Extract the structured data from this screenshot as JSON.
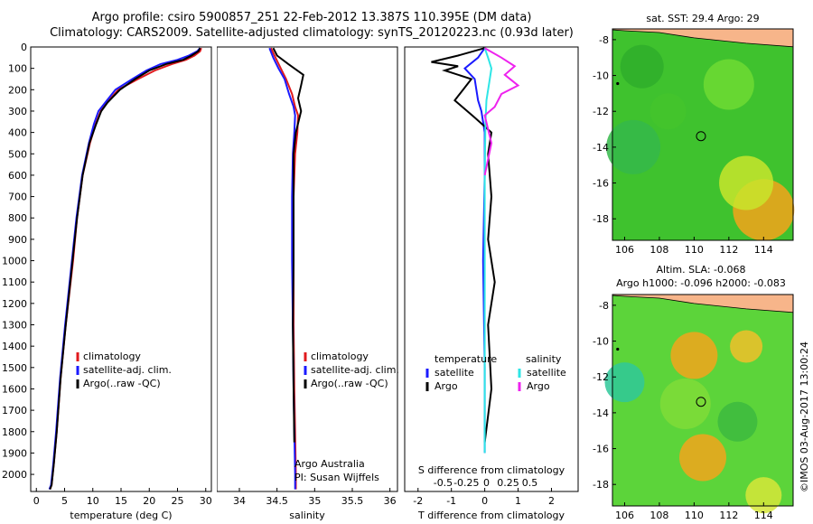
{
  "titles": {
    "line1": "Argo profile: csiro 5900857_251 22-Feb-2012 13.387S 110.395E (DM data)",
    "line2": "Climatology: CARS2009. Satellite-adjusted climatology: synTS_20120223.nc (0.93d later)"
  },
  "credit": "©IMOS 03-Aug-2017 13:00:24",
  "colors": {
    "red": "#e0191d",
    "blue": "#1a1aff",
    "black": "#000000",
    "cyan": "#2ee6e6",
    "magenta": "#ee22ee"
  },
  "chart_data": [
    {
      "type": "line",
      "name": "temperature-profile",
      "xlabel": "temperature (deg C)",
      "ylabel": "",
      "xlim": [
        -1,
        31
      ],
      "ylim": [
        2080,
        0
      ],
      "xticks": [
        "0",
        "5",
        "10",
        "15",
        "20",
        "25",
        "30"
      ],
      "xtick_values": [
        0,
        5,
        10,
        15,
        20,
        25,
        30
      ],
      "yticks": [
        "0",
        "100",
        "200",
        "300",
        "400",
        "500",
        "600",
        "700",
        "800",
        "900",
        "1000",
        "1100",
        "1200",
        "1300",
        "1400",
        "1500",
        "1600",
        "1700",
        "1800",
        "1900",
        "2000"
      ],
      "ytick_values": [
        0,
        100,
        200,
        300,
        400,
        500,
        600,
        700,
        800,
        900,
        1000,
        1100,
        1200,
        1300,
        1400,
        1500,
        1600,
        1700,
        1800,
        1900,
        2000
      ],
      "legend": [
        "climatology",
        "satellite-adj. clim.",
        "Argo(..raw -QC)"
      ],
      "series": [
        {
          "name": "climatology",
          "color": "red",
          "x": [
            29.2,
            29,
            28,
            26.5,
            24,
            21,
            18,
            14.5,
            12.5,
            11.4,
            10.5,
            9.5,
            8.2,
            7.2,
            6.5,
            5.2,
            4.3,
            3.6,
            3.1,
            2.7,
            2.4
          ],
          "y": [
            5,
            20,
            40,
            60,
            80,
            110,
            150,
            200,
            260,
            300,
            360,
            450,
            600,
            800,
            1000,
            1300,
            1550,
            1800,
            1950,
            2050,
            2070
          ]
        },
        {
          "name": "satellite-adj. clim.",
          "color": "blue",
          "x": [
            29,
            28.5,
            27,
            25,
            22,
            19.5,
            17,
            14,
            12.2,
            11,
            10.2,
            9.3,
            8.1,
            7.1,
            6.3,
            5.1,
            4.2,
            3.5,
            3.0,
            2.6,
            2.3
          ],
          "y": [
            5,
            20,
            40,
            60,
            80,
            110,
            150,
            200,
            260,
            300,
            360,
            450,
            600,
            800,
            1000,
            1300,
            1550,
            1800,
            1950,
            2050,
            2070
          ]
        },
        {
          "name": "Argo(..raw -QC)",
          "color": "black",
          "x": [
            29,
            28.7,
            27.5,
            26,
            23,
            20,
            17.5,
            14.8,
            12.6,
            11.5,
            10.6,
            9.4,
            8.2,
            7.2,
            6.4,
            5.2,
            4.3,
            3.6,
            3.1,
            2.7,
            2.4
          ],
          "y": [
            5,
            20,
            40,
            60,
            80,
            110,
            150,
            200,
            260,
            300,
            360,
            450,
            600,
            800,
            1000,
            1300,
            1550,
            1800,
            1950,
            2050,
            2070
          ]
        }
      ]
    },
    {
      "type": "line",
      "name": "salinity-profile",
      "xlabel": "salinity",
      "xlim": [
        33.7,
        36.1
      ],
      "ylim": [
        2080,
        0
      ],
      "xticks": [
        "34",
        "34.5",
        "35",
        "35.5",
        "36"
      ],
      "xtick_values": [
        34,
        34.5,
        35,
        35.5,
        36
      ],
      "legend": [
        "climatology",
        "satellite-adj. clim.",
        "Argo(..raw -QC)"
      ],
      "annotation": [
        "Argo Australia",
        "PI: Susan Wijffels"
      ],
      "series": [
        {
          "name": "climatology",
          "color": "red",
          "x": [
            34.42,
            34.48,
            34.55,
            34.62,
            34.7,
            34.74,
            34.78,
            34.77,
            34.74,
            34.72,
            34.72,
            34.72,
            34.73,
            34.74,
            34.75,
            34.75
          ],
          "y": [
            5,
            50,
            100,
            150,
            220,
            280,
            320,
            400,
            500,
            700,
            1000,
            1300,
            1600,
            1800,
            2000,
            2070
          ]
        },
        {
          "name": "satellite-adj. clim.",
          "color": "blue",
          "x": [
            34.4,
            34.45,
            34.52,
            34.6,
            34.66,
            34.72,
            34.74,
            34.73,
            34.71,
            34.7,
            34.7,
            34.71,
            34.72,
            34.73,
            34.74,
            34.74
          ],
          "y": [
            5,
            50,
            100,
            150,
            220,
            280,
            320,
            400,
            500,
            700,
            1000,
            1300,
            1600,
            1800,
            2000,
            2070
          ]
        },
        {
          "name": "Argo(..raw -QC)",
          "color": "black",
          "x": [
            34.45,
            34.5,
            34.65,
            34.85,
            34.82,
            34.78,
            34.82,
            34.75,
            34.72,
            34.72,
            34.72,
            34.71,
            34.72,
            34.73
          ],
          "y": [
            5,
            40,
            80,
            130,
            180,
            240,
            300,
            400,
            500,
            700,
            1000,
            1300,
            1600,
            1850
          ]
        }
      ]
    },
    {
      "type": "line",
      "name": "difference-profile",
      "xlabel": "T difference from climatology",
      "xlabel_top": "S difference from climatology",
      "xlim": [
        -2.4,
        2.8
      ],
      "ylim": [
        2080,
        0
      ],
      "xticks": [
        "-2",
        "-1",
        "0",
        "1",
        "2"
      ],
      "xtick_values": [
        -2,
        -1,
        0,
        1,
        2
      ],
      "xticks_top": [
        "-0.5",
        "-0.25",
        "0",
        "0.25",
        "0.5"
      ],
      "legend": [
        "temperature",
        "satellite",
        "Argo",
        "salinity",
        "satellite",
        "Argo"
      ],
      "series": [
        {
          "name": "temperature satellite",
          "color": "blue",
          "x": [
            0,
            -0.2,
            -0.6,
            -0.3,
            -0.2,
            -0.1,
            0,
            0,
            -0.05,
            0,
            0
          ],
          "y": [
            5,
            50,
            100,
            150,
            250,
            300,
            400,
            600,
            1000,
            1500,
            1900
          ]
        },
        {
          "name": "temperature Argo",
          "color": "black",
          "x": [
            0,
            -0.8,
            -1.6,
            -0.8,
            -1.2,
            -0.4,
            -0.9,
            -0.3,
            0.2,
            0.1,
            0.2,
            0.1,
            0.3,
            0.1,
            0.2,
            0
          ],
          "y": [
            5,
            40,
            70,
            90,
            110,
            150,
            250,
            330,
            400,
            500,
            700,
            900,
            1100,
            1300,
            1600,
            1850
          ]
        },
        {
          "name": "salinity satellite",
          "color": "cyan",
          "x": [
            0,
            0.1,
            0.2,
            0.15,
            0.05,
            0.02,
            0,
            0,
            0
          ],
          "y": [
            5,
            50,
            100,
            150,
            250,
            350,
            600,
            1000,
            1900
          ]
        },
        {
          "name": "salinity Argo",
          "color": "magenta",
          "x": [
            0,
            0.5,
            0.9,
            0.6,
            1.0,
            0.5,
            0.3,
            0,
            0.2,
            0
          ],
          "y": [
            5,
            50,
            90,
            130,
            180,
            220,
            280,
            320,
            450,
            600
          ]
        }
      ]
    },
    {
      "type": "heatmap",
      "name": "sst-map",
      "title": "sat. SST: 29.4 Argo: 29",
      "xlim": [
        105.3,
        115.7
      ],
      "ylim": [
        -19.2,
        -7.4
      ],
      "xticks": [
        "106",
        "108",
        "110",
        "112",
        "114"
      ],
      "xtick_values": [
        106,
        108,
        110,
        112,
        114
      ],
      "yticks": [
        "-8",
        "-10",
        "-12",
        "-14",
        "-16",
        "-18"
      ],
      "ytick_values": [
        -8,
        -10,
        -12,
        -14,
        -16,
        -18
      ],
      "marker": {
        "lon": 110.395,
        "lat": -13.387
      }
    },
    {
      "type": "heatmap",
      "name": "sla-map",
      "title": [
        "Altim. SLA: -0.068",
        "Argo h1000: -0.096 h2000: -0.083"
      ],
      "xlim": [
        105.3,
        115.7
      ],
      "ylim": [
        -19.2,
        -7.4
      ],
      "xticks": [
        "106",
        "108",
        "110",
        "112",
        "114"
      ],
      "xtick_values": [
        106,
        108,
        110,
        112,
        114
      ],
      "yticks": [
        "-8",
        "-10",
        "-12",
        "-14",
        "-16",
        "-18"
      ],
      "ytick_values": [
        -8,
        -10,
        -12,
        -14,
        -16,
        -18
      ],
      "marker": {
        "lon": 110.395,
        "lat": -13.387
      }
    }
  ]
}
